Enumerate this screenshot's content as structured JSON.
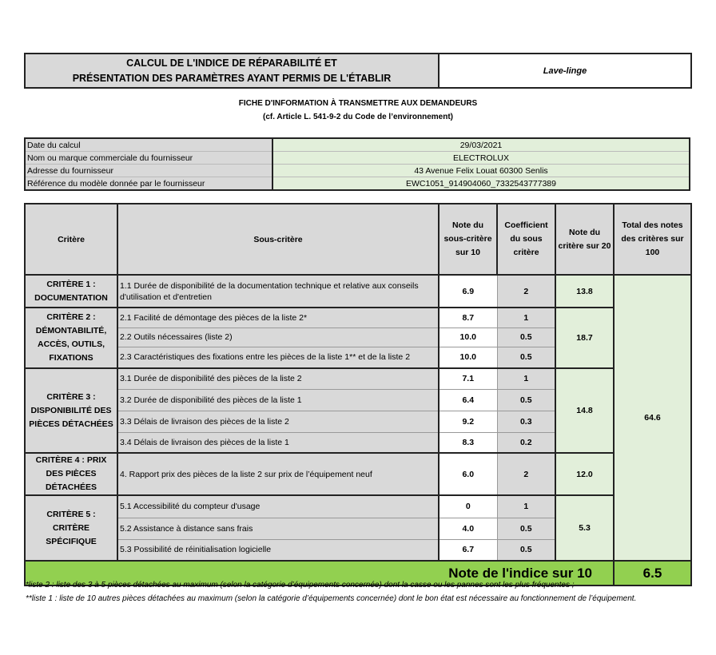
{
  "header": {
    "title_line1": "CALCUL DE L'INDICE DE RÉPARABILITÉ ET",
    "title_line2": "PRÉSENTATION DES PARAMÈTRES AYANT PERMIS DE L'ÉTABLIR",
    "product": "Lave-linge"
  },
  "subtitle": {
    "line1": "FICHE D'INFORMATION À TRANSMETTRE AUX DEMANDEURS",
    "line2": "(cf. Article L. 541-9-2 du Code de l’environnement)"
  },
  "info": [
    {
      "label": "Date du calcul",
      "value": "29/03/2021"
    },
    {
      "label": "Nom ou marque commerciale du fournisseur",
      "value": "ELECTROLUX"
    },
    {
      "label": "Adresse du fournisseur",
      "value": "43  Avenue  Felix Louat  60300 Senlis"
    },
    {
      "label": "Référence du modèle donnée par le fournisseur",
      "value": "EWC1051_914904060_7332543777389"
    }
  ],
  "table": {
    "headers": [
      "Critère",
      "Sous-critère",
      "Note du sous-critère sur 10",
      "Coefficient du sous critère",
      "Note du critère sur 20",
      "Total des notes des critères sur 100"
    ],
    "criteria": [
      {
        "name": "CRITÈRE 1 : DOCUMENTATION",
        "score": "13.8",
        "subs": [
          {
            "label": "1.1 Durée de disponibilité de la documentation technique et relative aux conseils d'utilisation et d'entretien",
            "note": "6.9",
            "coef": "2"
          }
        ]
      },
      {
        "name": "CRITÈRE 2 : DÉMONTABILITÉ, ACCÈS, OUTILS, FIXATIONS",
        "score": "18.7",
        "subs": [
          {
            "label": "2.1 Facilité de démontage des pièces de la liste 2*",
            "note": "8.7",
            "coef": "1"
          },
          {
            "label": "2.2 Outils nécessaires (liste 2)",
            "note": "10.0",
            "coef": "0.5"
          },
          {
            "label": "2.3 Caractéristiques des fixations entre les pièces de la liste 1** et de la liste 2",
            "note": "10.0",
            "coef": "0.5"
          }
        ]
      },
      {
        "name": "CRITÈRE 3 : DISPONIBILITÉ DES PIÈCES DÉTACHÉES",
        "score": "14.8",
        "subs": [
          {
            "label": "3.1 Durée de disponibilité des pièces de la liste 2",
            "note": "7.1",
            "coef": "1"
          },
          {
            "label": "3.2 Durée de disponibilité des pièces de la liste 1",
            "note": "6.4",
            "coef": "0.5"
          },
          {
            "label": "3.3 Délais de livraison des pièces de la liste 2",
            "note": "9.2",
            "coef": "0.3"
          },
          {
            "label": "3.4 Délais de livraison des pièces de la liste 1",
            "note": "8.3",
            "coef": "0.2"
          }
        ]
      },
      {
        "name": "CRITÈRE 4 : PRIX DES PIÈCES DÉTACHÉES",
        "score": "12.0",
        "subs": [
          {
            "label": "4. Rapport prix des pièces de la liste 2 sur prix de l’équipement neuf",
            "note": "6.0",
            "coef": "2"
          }
        ]
      },
      {
        "name": "CRITÈRE 5 : CRITÈRE SPÉCIFIQUE",
        "score": "5.3",
        "subs": [
          {
            "label": "5.1 Accessibilité du compteur d'usage",
            "note": "0",
            "coef": "1"
          },
          {
            "label": "5.2 Assistance à distance sans frais",
            "note": "4.0",
            "coef": "0.5"
          },
          {
            "label": "5.3 Possibilité de réinitialisation logicielle",
            "note": "6.7",
            "coef": "0.5"
          }
        ]
      }
    ],
    "total": "64.6",
    "final_label": "Note de l'indice sur 10",
    "final_value": "6.5"
  },
  "notes": [
    "*liste 2 : liste des 3 à 5 pièces détachées au maximum (selon la catégorie d’équipements concernée) dont la casse ou les pannes sont les plus fréquentes ;",
    "**liste 1 : liste de 10 autres pièces détachées au maximum (selon la catégorie d’équipements concernée) dont le bon état est nécessaire au fonctionnement de l’équipement."
  ],
  "colors": {
    "gray": "#d9d9d9",
    "light_green": "#e2efda",
    "green": "#92d050"
  }
}
